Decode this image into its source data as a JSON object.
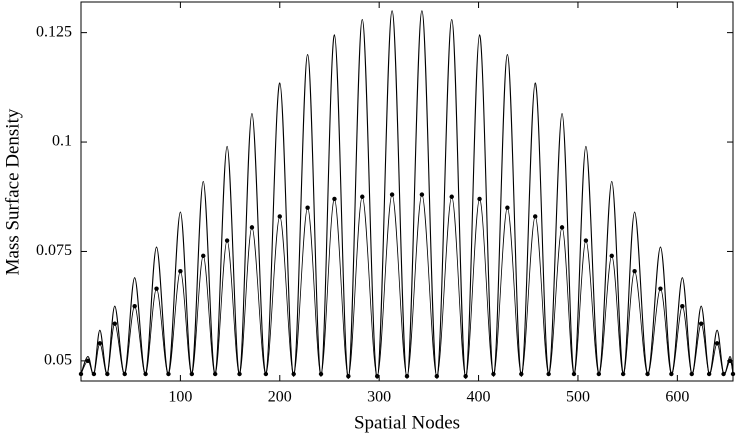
{
  "chart_data": {
    "type": "line",
    "x_label": "Spatial Nodes",
    "y_label": "Mass Surface Density",
    "x": [
      0,
      7,
      13,
      19,
      26.5,
      34,
      44,
      54,
      65,
      76,
      88,
      100,
      111.5,
      123,
      135,
      147,
      159.5,
      172,
      186,
      200,
      214,
      228,
      241.5,
      255,
      269,
      283,
      298,
      313,
      328,
      343,
      358,
      373,
      387,
      401,
      415,
      429,
      443,
      457,
      470.5,
      484,
      496,
      508,
      521,
      534,
      545.5,
      557,
      570,
      583,
      594,
      605,
      614.5,
      624,
      632,
      640,
      646.5,
      653,
      656
    ],
    "series": [
      {
        "color": "#000000",
        "marker": "none",
        "values": [
          0.047,
          0.051,
          0.047,
          0.057,
          0.047,
          0.0625,
          0.047,
          0.069,
          0.047,
          0.076,
          0.047,
          0.084,
          0.047,
          0.091,
          0.047,
          0.099,
          0.047,
          0.1065,
          0.047,
          0.1135,
          0.0465,
          0.12,
          0.0465,
          0.1245,
          0.046,
          0.128,
          0.046,
          0.13,
          0.046,
          0.13,
          0.046,
          0.128,
          0.046,
          0.1245,
          0.0465,
          0.12,
          0.0465,
          0.1135,
          0.047,
          0.1065,
          0.047,
          0.099,
          0.047,
          0.091,
          0.047,
          0.084,
          0.047,
          0.076,
          0.047,
          0.069,
          0.047,
          0.0625,
          0.047,
          0.057,
          0.047,
          0.051,
          0.047
        ]
      },
      {
        "color": "#000000",
        "marker": "dot",
        "values": [
          0.047,
          0.05,
          0.047,
          0.054,
          0.047,
          0.0585,
          0.047,
          0.0625,
          0.047,
          0.0665,
          0.047,
          0.0705,
          0.047,
          0.074,
          0.047,
          0.0775,
          0.047,
          0.0805,
          0.047,
          0.083,
          0.047,
          0.085,
          0.047,
          0.087,
          0.0465,
          0.0875,
          0.0465,
          0.088,
          0.0465,
          0.088,
          0.0465,
          0.0875,
          0.0465,
          0.087,
          0.047,
          0.085,
          0.047,
          0.083,
          0.047,
          0.0805,
          0.047,
          0.0775,
          0.047,
          0.074,
          0.047,
          0.0705,
          0.047,
          0.0665,
          0.047,
          0.0625,
          0.047,
          0.0585,
          0.047,
          0.054,
          0.047,
          0.05,
          0.047
        ]
      }
    ],
    "xlim": [
      0,
      656
    ],
    "ylim": [
      0.0454,
      0.132
    ],
    "xticks": [
      100,
      200,
      300,
      400,
      500,
      600
    ],
    "yticks": [
      0.05,
      0.075,
      0.1,
      0.125
    ]
  }
}
